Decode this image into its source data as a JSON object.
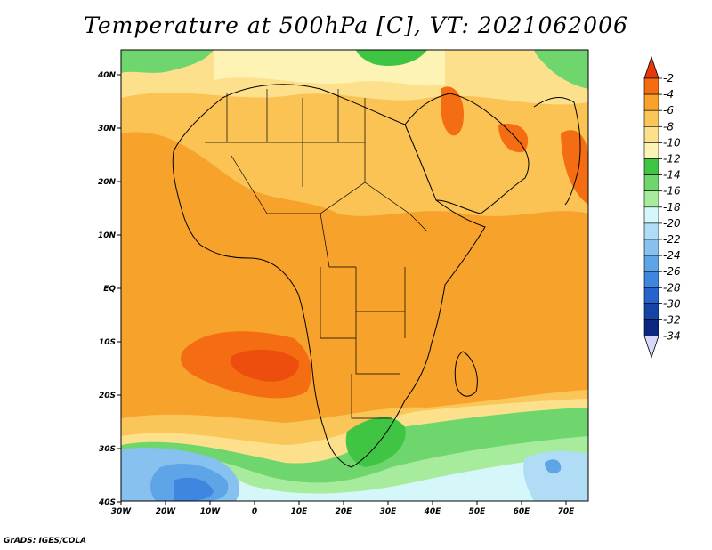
{
  "title": "Temperature at 500hPa [C], VT: 2021062006",
  "credit": "GrADS: IGES/COLA",
  "map": {
    "lon_labels": [
      "30W",
      "20W",
      "10W",
      "0",
      "10E",
      "20E",
      "30E",
      "40E",
      "50E",
      "60E",
      "70E"
    ],
    "lat_labels": [
      "40N",
      "30N",
      "20N",
      "10N",
      "EQ",
      "10S",
      "20S",
      "30S",
      "40S"
    ]
  },
  "colorbar": {
    "labels": [
      "-2",
      "-4",
      "-6",
      "-8",
      "-10",
      "-12",
      "-14",
      "-16",
      "-18",
      "-20",
      "-22",
      "-24",
      "-26",
      "-28",
      "-30",
      "-32",
      "-34"
    ],
    "colors": [
      "#e8380a",
      "#f46d12",
      "#f7a22a",
      "#fac659",
      "#fde08c",
      "#fdf3b5",
      "#3fc444",
      "#6ed66c",
      "#a7eb9c",
      "#d5f7f9",
      "#b0dcf6",
      "#87c1ef",
      "#5ea5e8",
      "#3e86e0",
      "#2563cf",
      "#1544a6",
      "#0b267d",
      "#d8d8f8"
    ]
  }
}
